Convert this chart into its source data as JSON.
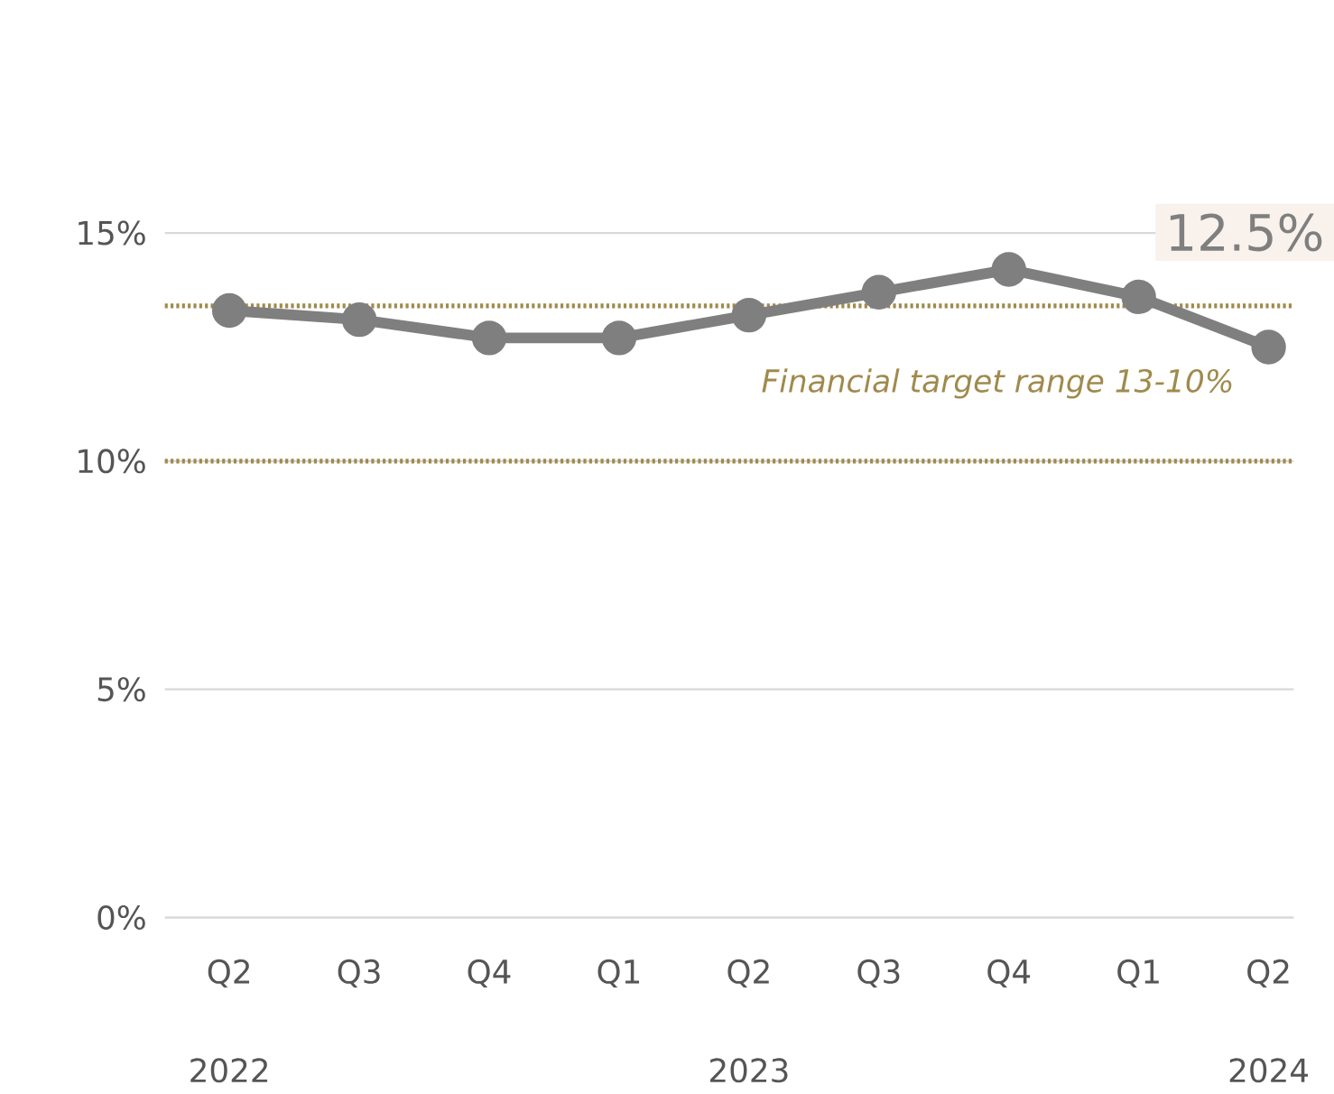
{
  "chart_data": {
    "type": "line",
    "categories": [
      "Q2",
      "Q3",
      "Q4",
      "Q1",
      "Q2",
      "Q3",
      "Q4",
      "Q1",
      "Q2"
    ],
    "series": [
      {
        "color": "#7f7f7f",
        "values": [
          13.3,
          13.1,
          12.7,
          12.7,
          13.2,
          13.7,
          14.2,
          13.6,
          12.5
        ],
        "value_labels": [
          null,
          null,
          null,
          null,
          null,
          null,
          null,
          null,
          "12.5%"
        ]
      }
    ],
    "ylim": [
      0,
      15
    ],
    "yticks": [
      {
        "value": 0,
        "label": "0%"
      },
      {
        "value": 5,
        "label": "5%"
      },
      {
        "value": 10,
        "label": "10%"
      },
      {
        "value": 15,
        "label": "15%"
      }
    ],
    "grid": "y",
    "marker": "circle",
    "line_style": "solid",
    "ref_lines": [
      {
        "axis": "y",
        "value": 13.4,
        "color": "#a08a4c",
        "line_style": "dotted"
      },
      {
        "axis": "y",
        "value": 10,
        "color": "#a08a4c",
        "line_style": "dotted"
      }
    ],
    "annotations": [
      "Financial target range 13-10%",
      "2022",
      "2023",
      "2024"
    ]
  }
}
